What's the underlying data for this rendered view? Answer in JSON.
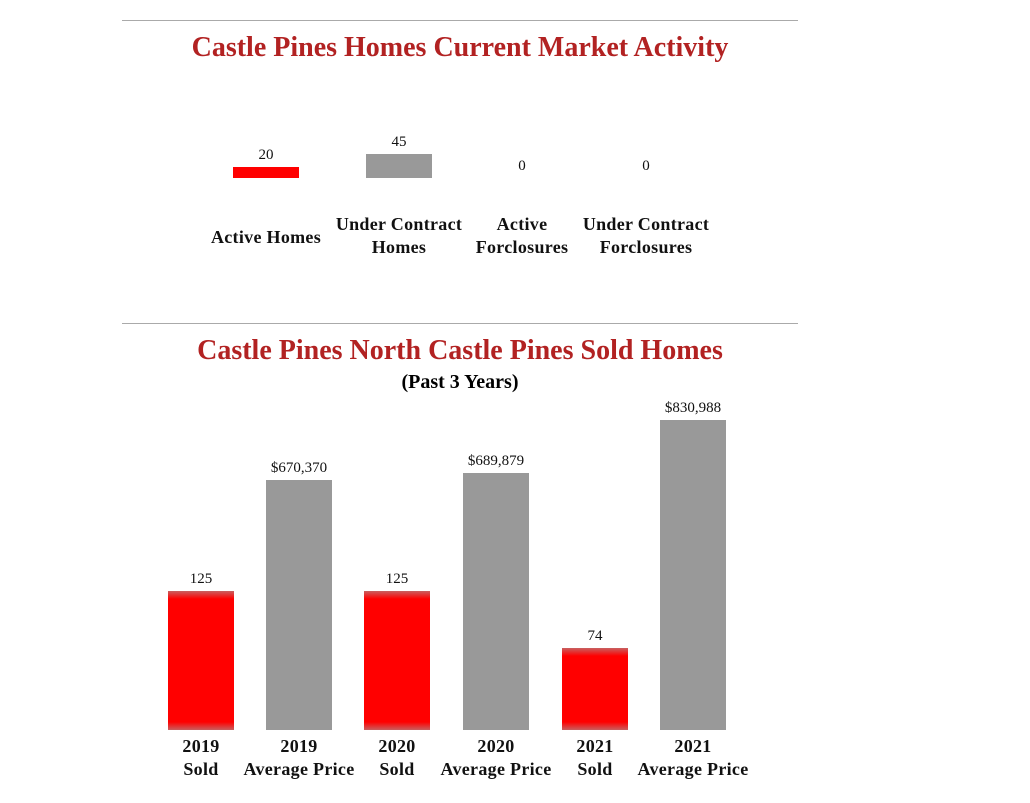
{
  "chart_data": [
    {
      "type": "bar",
      "title": "Castle Pines Homes Current Market Activity",
      "categories": [
        "Active Homes",
        "Under Contract Homes",
        "Active Forclosures",
        "Under Contract Forclosures"
      ],
      "values": [
        20,
        45,
        0,
        0
      ],
      "value_labels": [
        "20",
        "45",
        "0",
        "0"
      ],
      "colors": [
        "#ff0000",
        "#999999",
        "#999999",
        "#999999"
      ]
    },
    {
      "type": "bar",
      "title": "Castle Pines North Castle Pines Sold Homes",
      "subtitle": "(Past 3 Years)",
      "categories": [
        [
          "2019",
          "Sold"
        ],
        [
          "2019",
          "Average Price"
        ],
        [
          "2020",
          "Sold"
        ],
        [
          "2020",
          "Average Price"
        ],
        [
          "2021",
          "Sold"
        ],
        [
          "2021",
          "Average Price"
        ]
      ],
      "values": [
        125,
        670370,
        125,
        689879,
        74,
        830988
      ],
      "value_labels": [
        "125",
        "$670,370",
        "125",
        "$689,879",
        "74",
        "$830,988"
      ],
      "kinds": [
        "count",
        "price",
        "count",
        "price",
        "count",
        "price"
      ],
      "colors": {
        "count": "#ff0000",
        "price": "#999999"
      }
    }
  ]
}
